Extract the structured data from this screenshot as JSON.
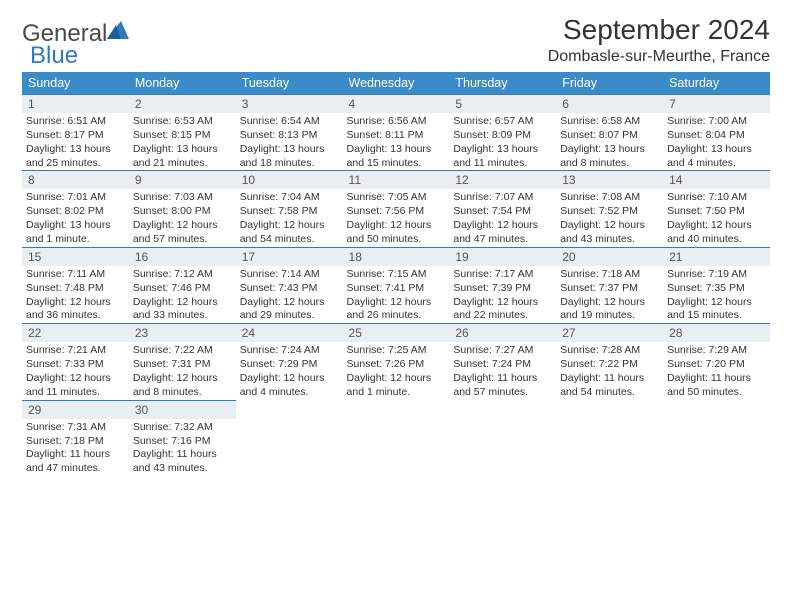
{
  "logo": {
    "word1": "General",
    "word2": "Blue",
    "general_color": "#4a4a4a",
    "blue_color": "#2f7bbf",
    "icon_color": "#2f7bbf"
  },
  "title": "September 2024",
  "location": "Dombasle-sur-Meurthe, France",
  "header_bg": "#3b8bc9",
  "header_text": "#ffffff",
  "daynum_bg": "#e9eef2",
  "daynum_border": "#2f7bbf",
  "text_color": "#333333",
  "background_color": "#ffffff",
  "font_family": "Arial",
  "title_fontsize": 28,
  "location_fontsize": 16,
  "dayhead_fontsize": 12.5,
  "cell_fontsize": 10.5,
  "weekdays": [
    "Sunday",
    "Monday",
    "Tuesday",
    "Wednesday",
    "Thursday",
    "Friday",
    "Saturday"
  ],
  "weeks": [
    [
      {
        "n": "1",
        "sr": "Sunrise: 6:51 AM",
        "ss": "Sunset: 8:17 PM",
        "d1": "Daylight: 13 hours",
        "d2": "and 25 minutes."
      },
      {
        "n": "2",
        "sr": "Sunrise: 6:53 AM",
        "ss": "Sunset: 8:15 PM",
        "d1": "Daylight: 13 hours",
        "d2": "and 21 minutes."
      },
      {
        "n": "3",
        "sr": "Sunrise: 6:54 AM",
        "ss": "Sunset: 8:13 PM",
        "d1": "Daylight: 13 hours",
        "d2": "and 18 minutes."
      },
      {
        "n": "4",
        "sr": "Sunrise: 6:56 AM",
        "ss": "Sunset: 8:11 PM",
        "d1": "Daylight: 13 hours",
        "d2": "and 15 minutes."
      },
      {
        "n": "5",
        "sr": "Sunrise: 6:57 AM",
        "ss": "Sunset: 8:09 PM",
        "d1": "Daylight: 13 hours",
        "d2": "and 11 minutes."
      },
      {
        "n": "6",
        "sr": "Sunrise: 6:58 AM",
        "ss": "Sunset: 8:07 PM",
        "d1": "Daylight: 13 hours",
        "d2": "and 8 minutes."
      },
      {
        "n": "7",
        "sr": "Sunrise: 7:00 AM",
        "ss": "Sunset: 8:04 PM",
        "d1": "Daylight: 13 hours",
        "d2": "and 4 minutes."
      }
    ],
    [
      {
        "n": "8",
        "sr": "Sunrise: 7:01 AM",
        "ss": "Sunset: 8:02 PM",
        "d1": "Daylight: 13 hours",
        "d2": "and 1 minute."
      },
      {
        "n": "9",
        "sr": "Sunrise: 7:03 AM",
        "ss": "Sunset: 8:00 PM",
        "d1": "Daylight: 12 hours",
        "d2": "and 57 minutes."
      },
      {
        "n": "10",
        "sr": "Sunrise: 7:04 AM",
        "ss": "Sunset: 7:58 PM",
        "d1": "Daylight: 12 hours",
        "d2": "and 54 minutes."
      },
      {
        "n": "11",
        "sr": "Sunrise: 7:05 AM",
        "ss": "Sunset: 7:56 PM",
        "d1": "Daylight: 12 hours",
        "d2": "and 50 minutes."
      },
      {
        "n": "12",
        "sr": "Sunrise: 7:07 AM",
        "ss": "Sunset: 7:54 PM",
        "d1": "Daylight: 12 hours",
        "d2": "and 47 minutes."
      },
      {
        "n": "13",
        "sr": "Sunrise: 7:08 AM",
        "ss": "Sunset: 7:52 PM",
        "d1": "Daylight: 12 hours",
        "d2": "and 43 minutes."
      },
      {
        "n": "14",
        "sr": "Sunrise: 7:10 AM",
        "ss": "Sunset: 7:50 PM",
        "d1": "Daylight: 12 hours",
        "d2": "and 40 minutes."
      }
    ],
    [
      {
        "n": "15",
        "sr": "Sunrise: 7:11 AM",
        "ss": "Sunset: 7:48 PM",
        "d1": "Daylight: 12 hours",
        "d2": "and 36 minutes."
      },
      {
        "n": "16",
        "sr": "Sunrise: 7:12 AM",
        "ss": "Sunset: 7:46 PM",
        "d1": "Daylight: 12 hours",
        "d2": "and 33 minutes."
      },
      {
        "n": "17",
        "sr": "Sunrise: 7:14 AM",
        "ss": "Sunset: 7:43 PM",
        "d1": "Daylight: 12 hours",
        "d2": "and 29 minutes."
      },
      {
        "n": "18",
        "sr": "Sunrise: 7:15 AM",
        "ss": "Sunset: 7:41 PM",
        "d1": "Daylight: 12 hours",
        "d2": "and 26 minutes."
      },
      {
        "n": "19",
        "sr": "Sunrise: 7:17 AM",
        "ss": "Sunset: 7:39 PM",
        "d1": "Daylight: 12 hours",
        "d2": "and 22 minutes."
      },
      {
        "n": "20",
        "sr": "Sunrise: 7:18 AM",
        "ss": "Sunset: 7:37 PM",
        "d1": "Daylight: 12 hours",
        "d2": "and 19 minutes."
      },
      {
        "n": "21",
        "sr": "Sunrise: 7:19 AM",
        "ss": "Sunset: 7:35 PM",
        "d1": "Daylight: 12 hours",
        "d2": "and 15 minutes."
      }
    ],
    [
      {
        "n": "22",
        "sr": "Sunrise: 7:21 AM",
        "ss": "Sunset: 7:33 PM",
        "d1": "Daylight: 12 hours",
        "d2": "and 11 minutes."
      },
      {
        "n": "23",
        "sr": "Sunrise: 7:22 AM",
        "ss": "Sunset: 7:31 PM",
        "d1": "Daylight: 12 hours",
        "d2": "and 8 minutes."
      },
      {
        "n": "24",
        "sr": "Sunrise: 7:24 AM",
        "ss": "Sunset: 7:29 PM",
        "d1": "Daylight: 12 hours",
        "d2": "and 4 minutes."
      },
      {
        "n": "25",
        "sr": "Sunrise: 7:25 AM",
        "ss": "Sunset: 7:26 PM",
        "d1": "Daylight: 12 hours",
        "d2": "and 1 minute."
      },
      {
        "n": "26",
        "sr": "Sunrise: 7:27 AM",
        "ss": "Sunset: 7:24 PM",
        "d1": "Daylight: 11 hours",
        "d2": "and 57 minutes."
      },
      {
        "n": "27",
        "sr": "Sunrise: 7:28 AM",
        "ss": "Sunset: 7:22 PM",
        "d1": "Daylight: 11 hours",
        "d2": "and 54 minutes."
      },
      {
        "n": "28",
        "sr": "Sunrise: 7:29 AM",
        "ss": "Sunset: 7:20 PM",
        "d1": "Daylight: 11 hours",
        "d2": "and 50 minutes."
      }
    ],
    [
      {
        "n": "29",
        "sr": "Sunrise: 7:31 AM",
        "ss": "Sunset: 7:18 PM",
        "d1": "Daylight: 11 hours",
        "d2": "and 47 minutes."
      },
      {
        "n": "30",
        "sr": "Sunrise: 7:32 AM",
        "ss": "Sunset: 7:16 PM",
        "d1": "Daylight: 11 hours",
        "d2": "and 43 minutes."
      },
      null,
      null,
      null,
      null,
      null
    ]
  ]
}
